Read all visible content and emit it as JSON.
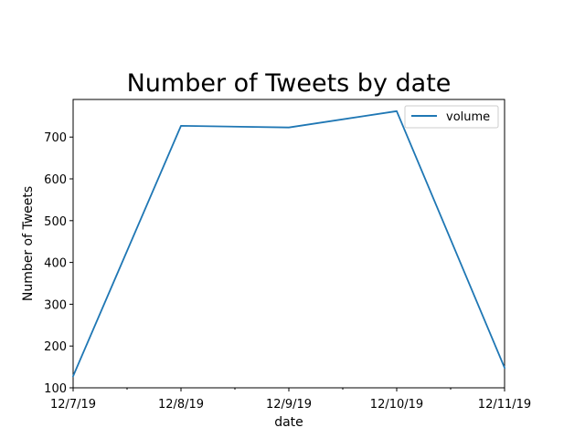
{
  "chart_data": {
    "type": "line",
    "title": "Number of Tweets by date",
    "xlabel": "date",
    "ylabel": "Number of Tweets",
    "x": [
      "12/7/19",
      "12/8/19",
      "12/9/19",
      "12/10/19",
      "12/11/19"
    ],
    "series": [
      {
        "name": "volume",
        "values": [
          128,
          727,
          723,
          762,
          148
        ],
        "color": "#1f77b4"
      }
    ],
    "ylim": [
      100,
      790
    ],
    "yticks": [
      100,
      200,
      300,
      400,
      500,
      600,
      700
    ],
    "grid": false,
    "legend": "top-right"
  }
}
